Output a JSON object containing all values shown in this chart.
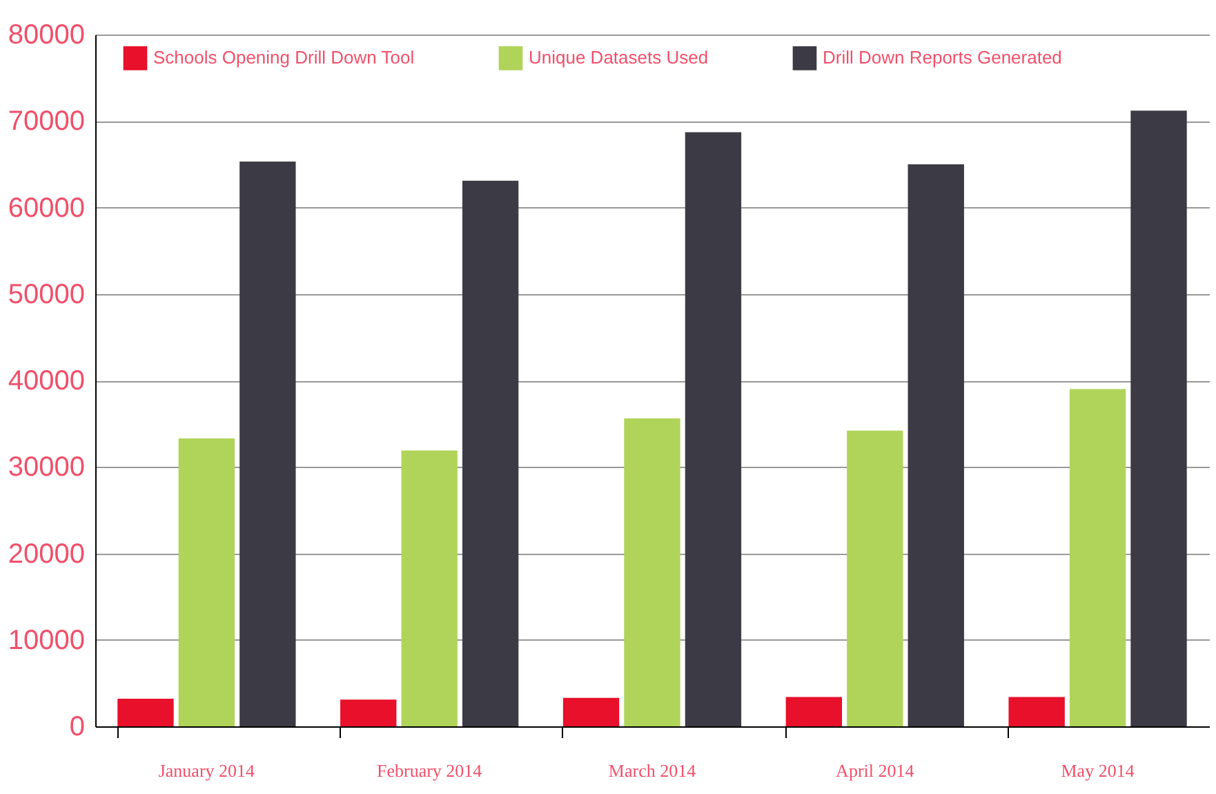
{
  "chart_data": {
    "type": "bar",
    "categories": [
      "January 2014",
      "February 2014",
      "March 2014",
      "April 2014",
      "May 2014"
    ],
    "series": [
      {
        "name": "Schools Opening Drill Down Tool",
        "color": "#e8102a",
        "values": [
          3200,
          3100,
          3300,
          3400,
          3400
        ]
      },
      {
        "name": "Unique Datasets Used",
        "color": "#b0d45a",
        "values": [
          33300,
          31900,
          35600,
          34200,
          39000
        ]
      },
      {
        "name": "Drill Down Reports Generated",
        "color": "#3c3b45",
        "values": [
          65300,
          63100,
          68700,
          65000,
          71200
        ]
      }
    ],
    "ylim": [
      0,
      80000
    ],
    "yticks": [
      0,
      10000,
      20000,
      30000,
      40000,
      50000,
      60000,
      70000,
      80000
    ],
    "grid": "y",
    "legend": "top"
  }
}
